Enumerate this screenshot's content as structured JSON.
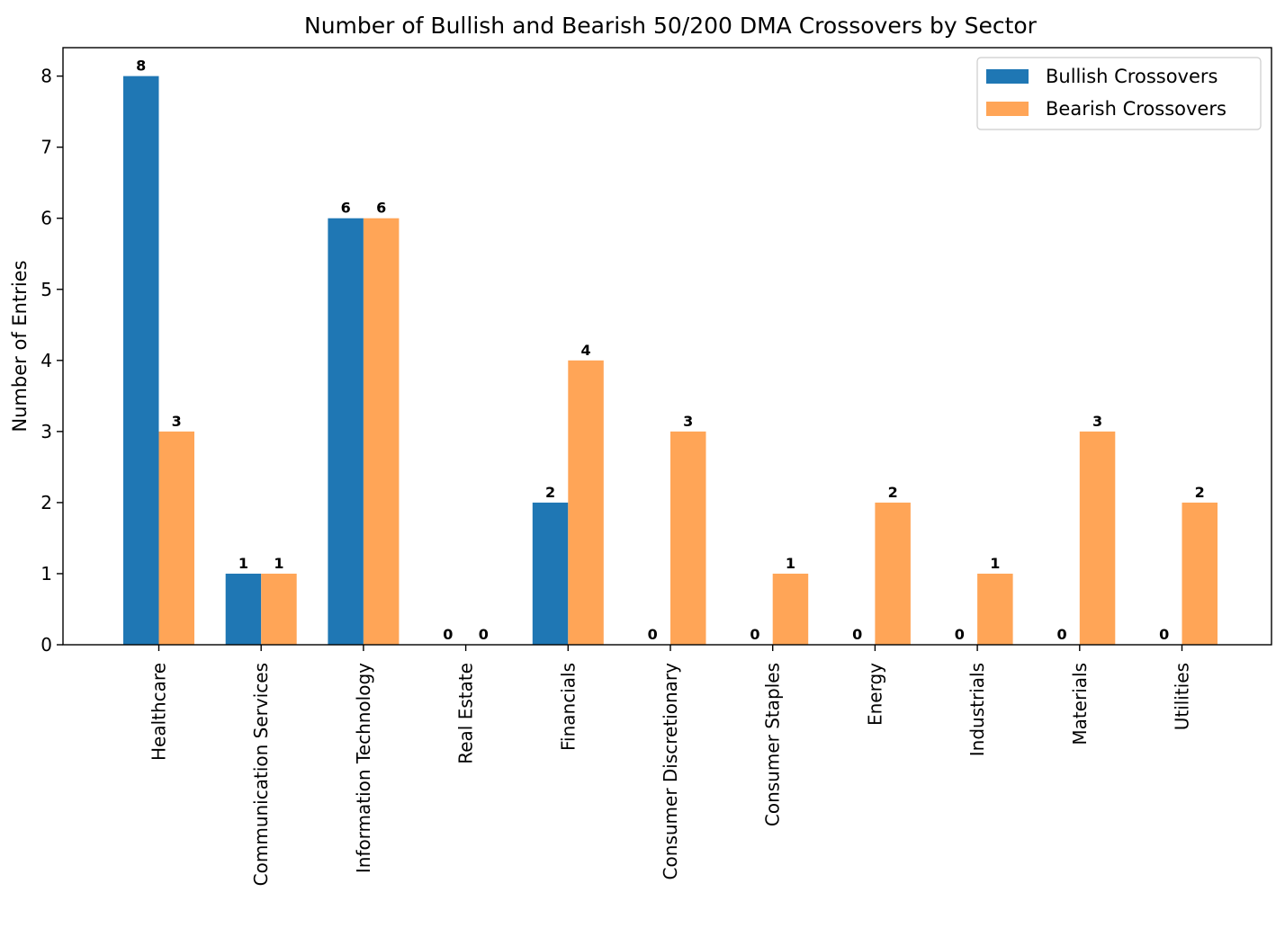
{
  "chart_data": {
    "type": "bar",
    "title": "Number of Bullish and Bearish 50/200 DMA Crossovers by Sector",
    "xlabel": "",
    "ylabel": "Number of Entries",
    "ylim": [
      0,
      8.4
    ],
    "yticks": [
      0,
      1,
      2,
      3,
      4,
      5,
      6,
      7,
      8
    ],
    "categories": [
      "Healthcare",
      "Communication Services",
      "Information Technology",
      "Real Estate",
      "Financials",
      "Consumer Discretionary",
      "Consumer Staples",
      "Energy",
      "Industrials",
      "Materials",
      "Utilities"
    ],
    "series": [
      {
        "name": "Bullish Crossovers",
        "color": "#1f77b4",
        "values": [
          8,
          1,
          6,
          0,
          2,
          0,
          0,
          0,
          0,
          0,
          0
        ]
      },
      {
        "name": "Bearish Crossovers",
        "color": "#ffa557",
        "values": [
          3,
          1,
          6,
          0,
          4,
          3,
          1,
          2,
          1,
          3,
          2
        ]
      }
    ],
    "legend": "top-right",
    "grid": false
  }
}
